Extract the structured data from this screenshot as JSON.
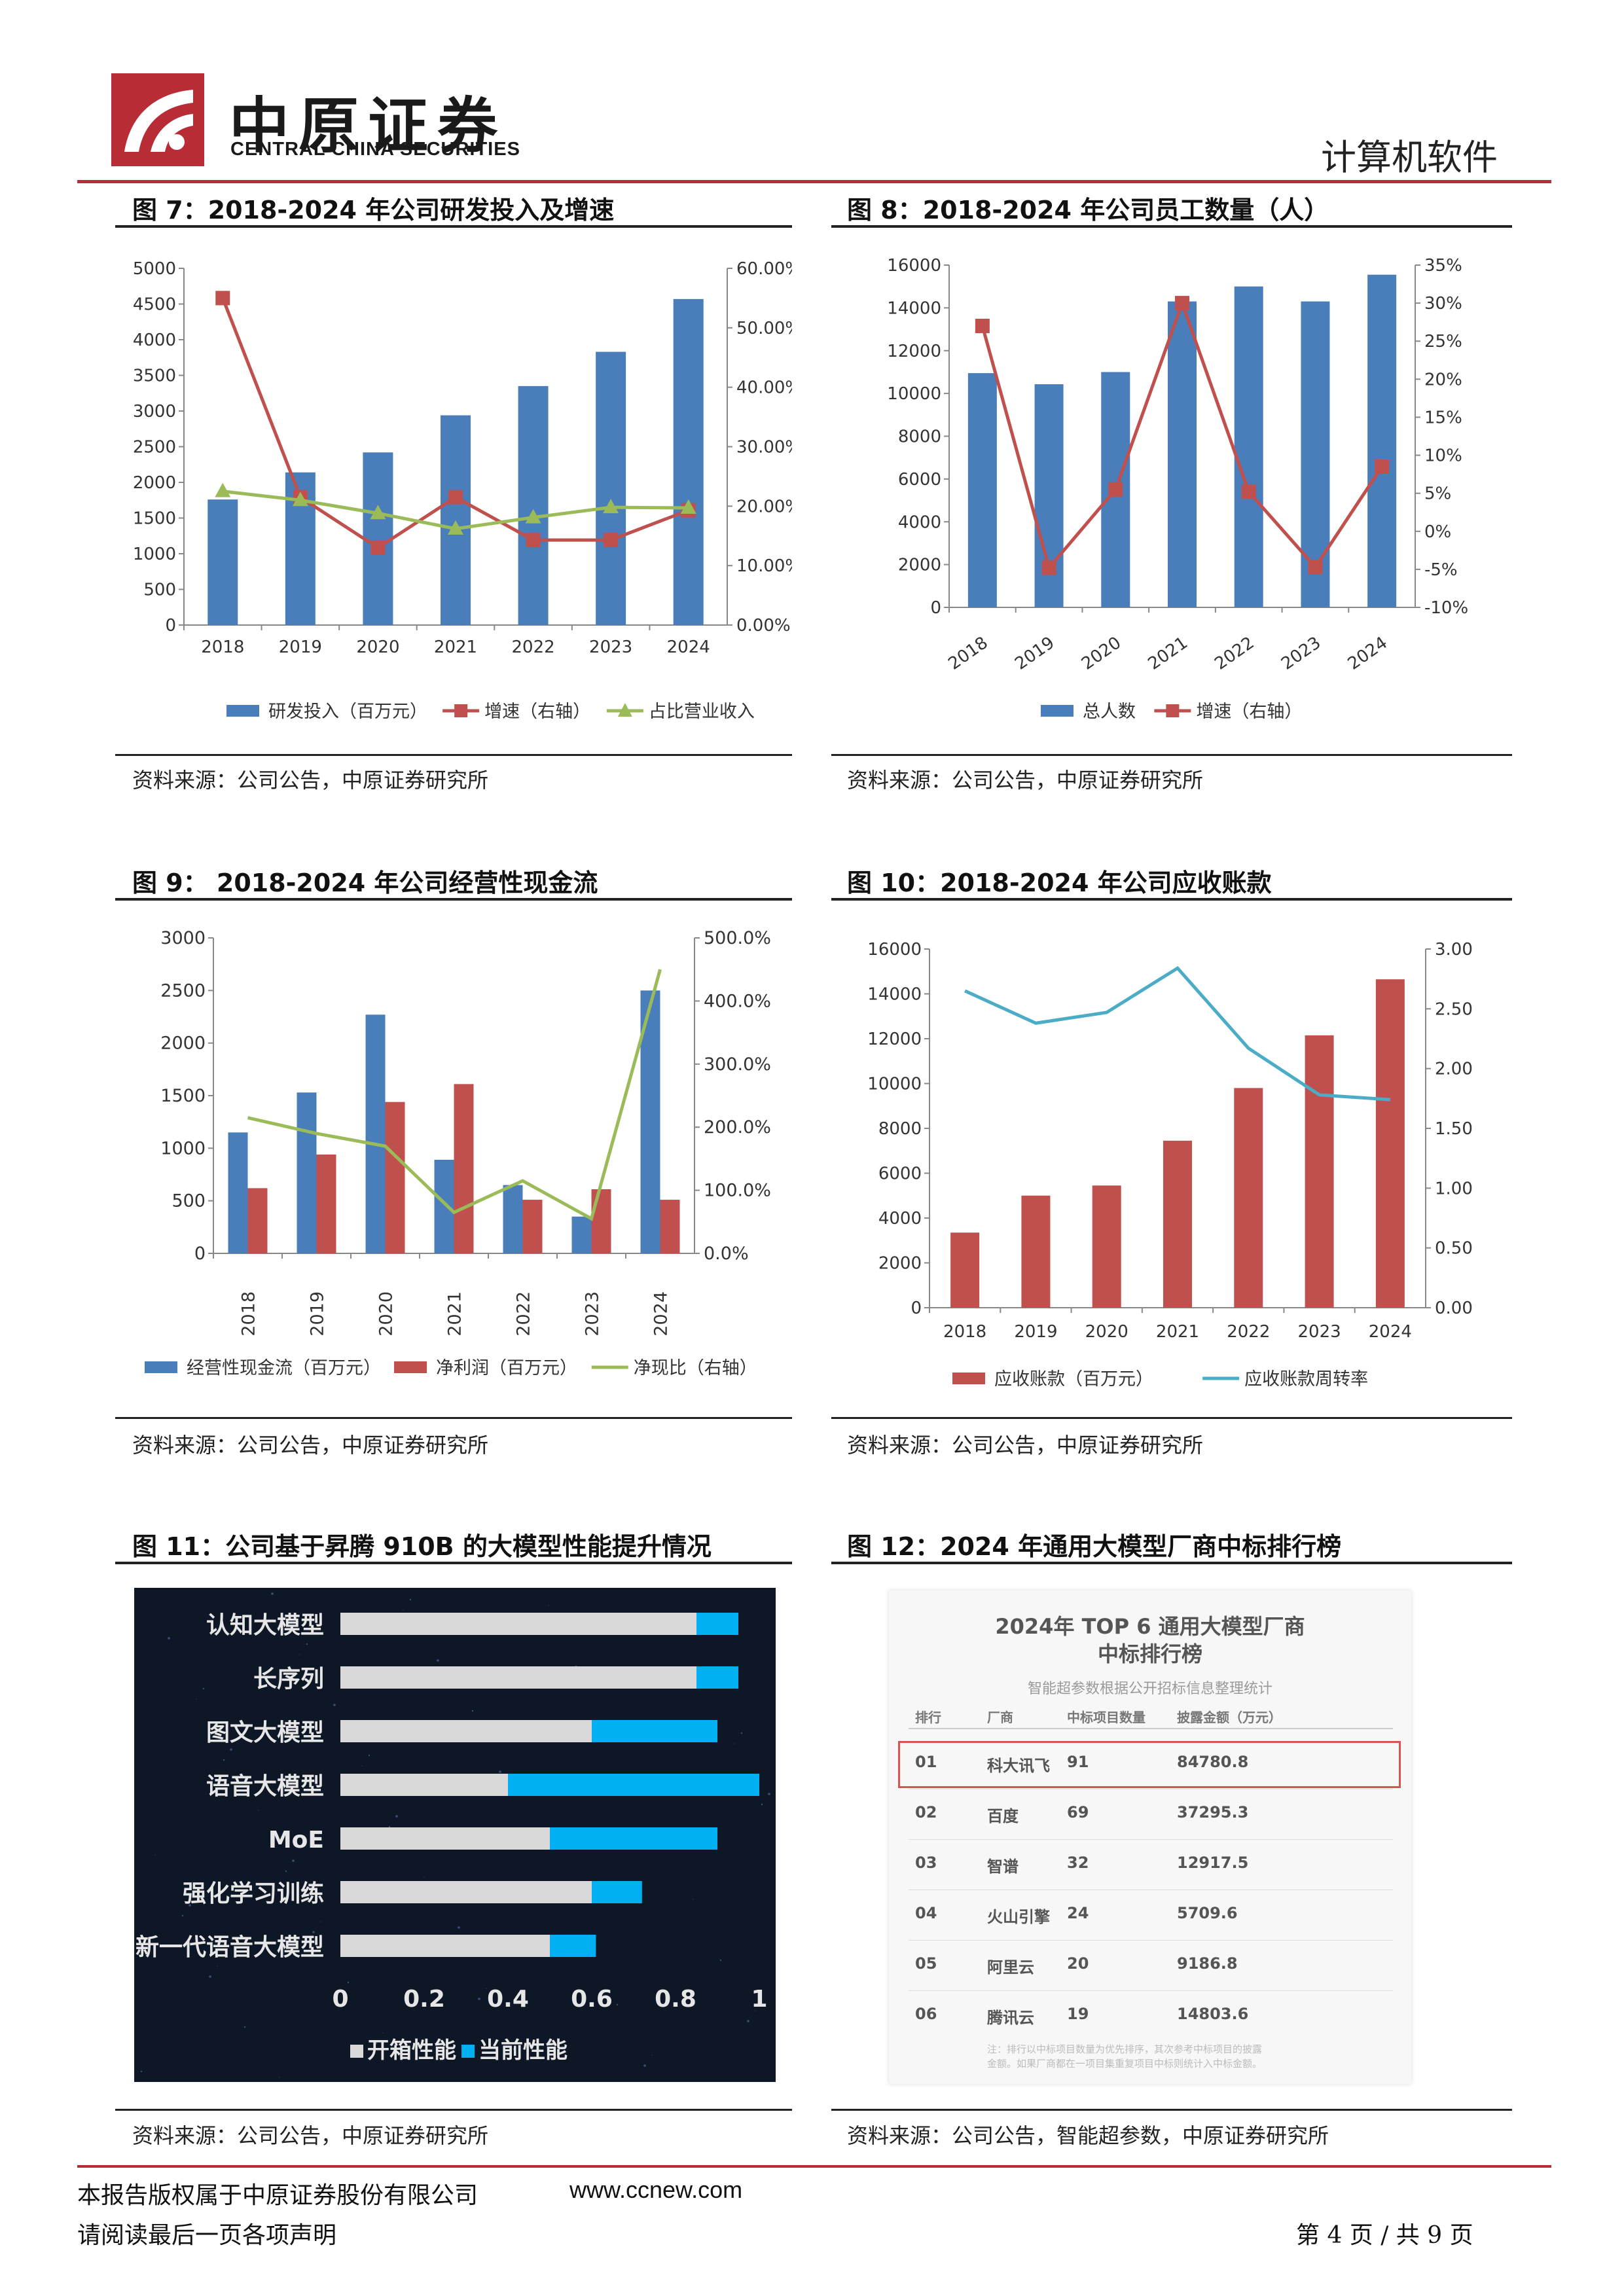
{
  "header": {
    "logo_cn": "中原证券",
    "logo_en": "CENTRAL CHINA SECURITIES",
    "section": "计算机软件"
  },
  "figures": {
    "f7": {
      "title": "图 7：2018-2024 年公司研发投入及增速",
      "source": "资料来源：公司公告，中原证券研究所"
    },
    "f8": {
      "title": "图 8：2018-2024 年公司员工数量（人）",
      "source": "资料来源：公司公告，中原证券研究所"
    },
    "f9": {
      "title": "图 9： 2018-2024 年公司经营性现金流",
      "source": "资料来源：公司公告，中原证券研究所"
    },
    "f10": {
      "title": "图 10：2018-2024 年公司应收账款",
      "source": "资料来源：公司公告，中原证券研究所"
    },
    "f11": {
      "title": "图 11：公司基于昇腾 910B 的大模型性能提升情况",
      "source": "资料来源：公司公告，中原证券研究所"
    },
    "f12": {
      "title": "图 12：2024 年通用大模型厂商中标排行榜",
      "source": "资料来源：公司公告，智能超参数，中原证券研究所"
    }
  },
  "chart_data": [
    {
      "id": "f7",
      "type": "bar",
      "categories": [
        "2018",
        "2019",
        "2020",
        "2021",
        "2022",
        "2023",
        "2024"
      ],
      "ylim": [
        0,
        5000
      ],
      "yticks": [
        "0",
        "500",
        "1000",
        "1500",
        "2000",
        "2500",
        "3000",
        "3500",
        "4000",
        "4500",
        "5000"
      ],
      "y2lim": [
        0,
        60
      ],
      "y2ticks": [
        "0.00%",
        "10.00%",
        "20.00%",
        "30.00%",
        "40.00%",
        "50.00%",
        "60.00%"
      ],
      "series": [
        {
          "name": "研发投入（百万元）",
          "kind": "bar",
          "axis": "left",
          "color": "#4a7ebb",
          "values": [
            1760,
            2140,
            2420,
            2940,
            3350,
            3830,
            4570
          ]
        },
        {
          "name": "增速（右轴）",
          "kind": "line",
          "axis": "right",
          "color": "#c0504d",
          "marker": "square",
          "values": [
            55,
            21.5,
            13,
            21.5,
            14.3,
            14.3,
            19.3
          ]
        },
        {
          "name": "占比营业收入",
          "kind": "line",
          "axis": "right",
          "color": "#9bbb59",
          "marker": "triangle",
          "values": [
            22.5,
            21,
            18.8,
            16.2,
            18.1,
            19.8,
            19.7
          ]
        }
      ]
    },
    {
      "id": "f8",
      "type": "bar",
      "categories": [
        "2018",
        "2019",
        "2020",
        "2021",
        "2022",
        "2023",
        "2024"
      ],
      "ylim": [
        0,
        16000
      ],
      "yticks": [
        "0",
        "2000",
        "4000",
        "6000",
        "8000",
        "10000",
        "12000",
        "14000",
        "16000"
      ],
      "y2lim": [
        -10,
        35
      ],
      "y2ticks": [
        "-10%",
        "-5%",
        "0%",
        "5%",
        "10%",
        "15%",
        "20%",
        "25%",
        "30%",
        "35%"
      ],
      "series": [
        {
          "name": "总人数",
          "kind": "bar",
          "axis": "left",
          "color": "#4a7ebb",
          "values": [
            10950,
            10430,
            11000,
            14300,
            15000,
            14300,
            15550
          ]
        },
        {
          "name": "增速（右轴）",
          "kind": "line",
          "axis": "right",
          "color": "#c0504d",
          "marker": "square",
          "values": [
            27,
            -4.8,
            5.5,
            30,
            5.2,
            -4.7,
            8.5
          ]
        }
      ]
    },
    {
      "id": "f9",
      "type": "bar",
      "categories": [
        "2018",
        "2019",
        "2020",
        "2021",
        "2022",
        "2023",
        "2024"
      ],
      "ylim": [
        0,
        3000
      ],
      "yticks": [
        "0",
        "500",
        "1000",
        "1500",
        "2000",
        "2500",
        "3000"
      ],
      "y2lim": [
        0,
        500
      ],
      "y2ticks": [
        "0.0%",
        "100.0%",
        "200.0%",
        "300.0%",
        "400.0%",
        "500.0%"
      ],
      "series": [
        {
          "name": "经营性现金流（百万元）",
          "kind": "bar",
          "axis": "left",
          "color": "#4a7ebb",
          "values": [
            1150,
            1530,
            2270,
            890,
            650,
            350,
            2500
          ]
        },
        {
          "name": "净利润（百万元）",
          "kind": "bar",
          "axis": "left",
          "color": "#c0504d",
          "values": [
            620,
            940,
            1440,
            1610,
            510,
            610,
            510
          ]
        },
        {
          "name": "净现比（右轴）",
          "kind": "line",
          "axis": "right",
          "color": "#9bbb59",
          "values": [
            215,
            190,
            170,
            65,
            115,
            55,
            450
          ]
        }
      ]
    },
    {
      "id": "f10",
      "type": "bar",
      "categories": [
        "2018",
        "2019",
        "2020",
        "2021",
        "2022",
        "2023",
        "2024"
      ],
      "ylim": [
        0,
        16000
      ],
      "yticks": [
        "0",
        "2000",
        "4000",
        "6000",
        "8000",
        "10000",
        "12000",
        "14000",
        "16000"
      ],
      "y2lim": [
        0,
        3
      ],
      "y2ticks": [
        "0.00",
        "0.50",
        "1.00",
        "1.50",
        "2.00",
        "2.50",
        "3.00"
      ],
      "series": [
        {
          "name": "应收账款（百万元）",
          "kind": "bar",
          "axis": "left",
          "color": "#c0504d",
          "values": [
            3350,
            5000,
            5450,
            7450,
            9800,
            12150,
            14650
          ]
        },
        {
          "name": "应收账款周转率",
          "kind": "line",
          "axis": "right",
          "color": "#4bacc6",
          "values": [
            2.65,
            2.38,
            2.47,
            2.84,
            2.17,
            1.78,
            1.74
          ]
        }
      ]
    },
    {
      "id": "f11",
      "type": "bar",
      "orientation": "horizontal",
      "categories": [
        "认知大模型",
        "长序列",
        "图文大模型",
        "语音大模型",
        "MoE",
        "强化学习训练",
        "新一代语音大模型"
      ],
      "xlim": [
        0,
        1
      ],
      "xticks": [
        "0",
        "0.2",
        "0.4",
        "0.6",
        "0.8",
        "1"
      ],
      "series": [
        {
          "name": "开箱性能",
          "color": "#d9d9d9",
          "values": [
            0.85,
            0.85,
            0.6,
            0.4,
            0.5,
            0.6,
            0.5
          ]
        },
        {
          "name": "当前性能",
          "color": "#00b0f0",
          "values": [
            0.95,
            0.95,
            0.9,
            1.0,
            0.9,
            0.72,
            0.61
          ]
        }
      ]
    }
  ],
  "ranking": {
    "title_line1": "2024年 TOP 6 通用大模型厂商",
    "title_line2": "中标排行榜",
    "subtitle": "智能超参数根据公开招标信息整理统计",
    "headers": [
      "排行",
      "厂商",
      "中标项目数量",
      "披露金额（万元）"
    ],
    "rows": [
      [
        "01",
        "科大讯飞",
        "91",
        "84780.8"
      ],
      [
        "02",
        "百度",
        "69",
        "37295.3"
      ],
      [
        "03",
        "智谱",
        "32",
        "12917.5"
      ],
      [
        "04",
        "火山引擎",
        "24",
        "5709.6"
      ],
      [
        "05",
        "阿里云",
        "20",
        "9186.8"
      ],
      [
        "06",
        "腾讯云",
        "19",
        "14803.6"
      ]
    ],
    "footnote_line1": "注：排行以中标项目数量为优先排序，其次参考中标项目的披露",
    "footnote_line2": "金额。如果厂商都在一项目集重复项目中标则统计入中标金额。"
  },
  "footer": {
    "copyright": "本报告版权属于中原证券股份有限公司",
    "website": "www.ccnew.com",
    "notice": "请阅读最后一页各项声明",
    "page": "第 4 页 / 共 9 页"
  }
}
